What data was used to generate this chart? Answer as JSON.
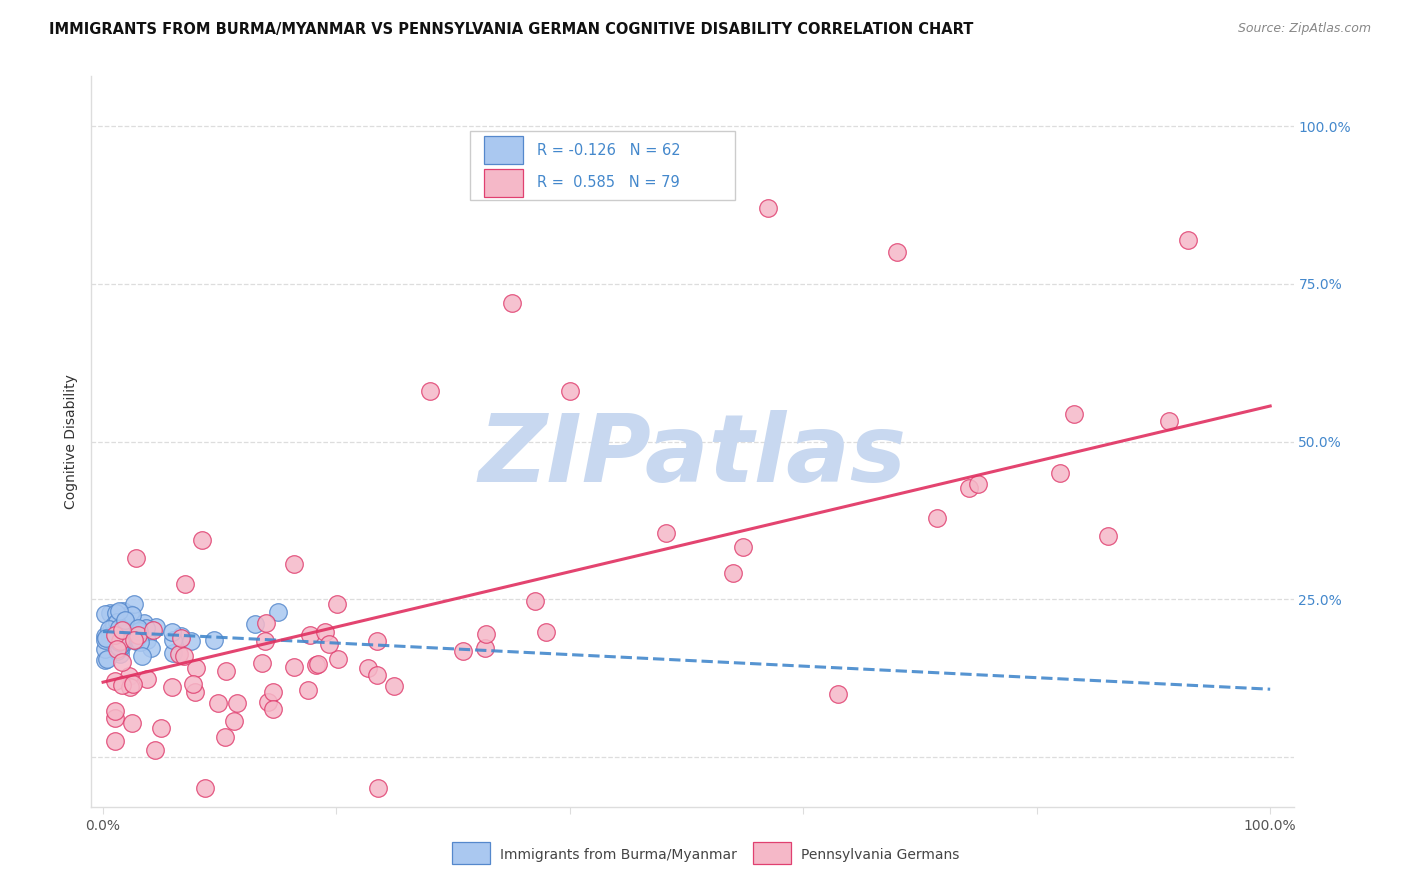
{
  "title": "IMMIGRANTS FROM BURMA/MYANMAR VS PENNSYLVANIA GERMAN COGNITIVE DISABILITY CORRELATION CHART",
  "source": "Source: ZipAtlas.com",
  "ylabel": "Cognitive Disability",
  "legend_blue_r": "-0.126",
  "legend_blue_n": "62",
  "legend_pink_r": "0.585",
  "legend_pink_n": "79",
  "legend_blue_label": "Immigrants from Burma/Myanmar",
  "legend_pink_label": "Pennsylvania Germans",
  "blue_fill": "#aac8f0",
  "blue_edge": "#5588cc",
  "pink_fill": "#f5b8c8",
  "pink_edge": "#e04070",
  "blue_line": "#4488cc",
  "pink_line": "#e03060",
  "watermark_color": "#c8d8f0",
  "grid_color": "#dddddd",
  "right_tick_color": "#4488cc",
  "title_color": "#111111",
  "source_color": "#888888",
  "axis_label_color": "#333333",
  "tick_color": "#555555"
}
